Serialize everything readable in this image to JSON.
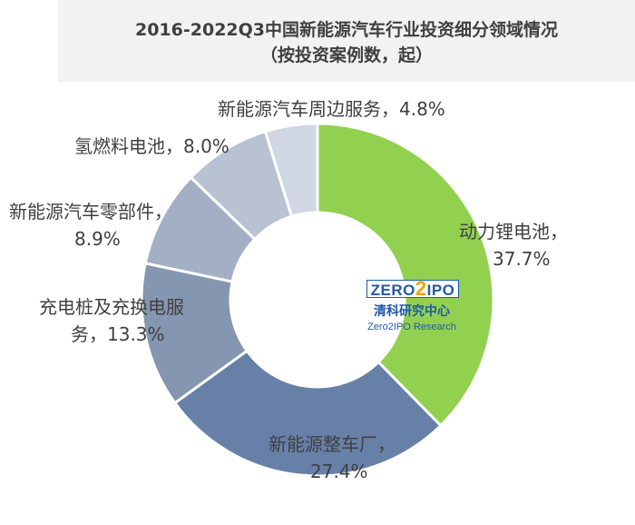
{
  "chart_data": {
    "type": "pie",
    "variant": "donut",
    "title": "2016-2022Q3中国新能源汽车行业投资细分领域情况",
    "subtitle": "（按投资案例数，起）",
    "slices": [
      {
        "name": "动力锂电池",
        "value": 37.7,
        "label_lines": [
          "动力锂电池，",
          "37.7%"
        ],
        "color": "#92d050"
      },
      {
        "name": "新能源整车厂",
        "value": 27.4,
        "label_lines": [
          "新能源整车厂，",
          "27.4%"
        ],
        "color": "#6680a8"
      },
      {
        "name": "充电桩及充换电服务",
        "value": 13.3,
        "label_lines": [
          "充电桩及充换电服",
          "务，13.3%"
        ],
        "color": "#8496b0"
      },
      {
        "name": "新能源汽车零部件",
        "value": 8.9,
        "label_lines": [
          "新能源汽车零部件，",
          "8.9%"
        ],
        "color": "#a2afc4"
      },
      {
        "name": "氢燃料电池",
        "value": 8.0,
        "label_lines": [
          "氢燃料电池，8.0%"
        ],
        "color": "#b8c2d2"
      },
      {
        "name": "新能源汽车周边服务",
        "value": 4.8,
        "label_lines": [
          "新能源汽车周边服务，4.8%"
        ],
        "color": "#d0d7e2"
      }
    ]
  },
  "logo": {
    "word_before": "ZERO",
    "digit": "2",
    "word_after": "IPO",
    "cn": "清科研究中心",
    "en": "Zero2IPO Research",
    "brand_color": "#1f5aa6",
    "digit_color": "#f0a500"
  }
}
